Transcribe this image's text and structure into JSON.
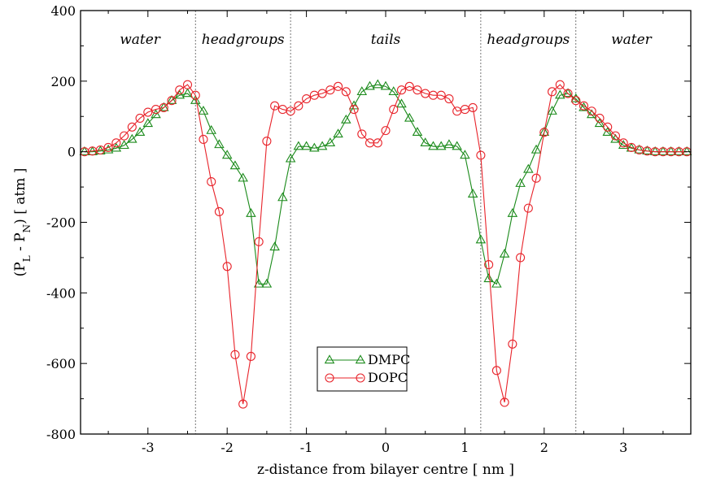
{
  "chart_data": {
    "type": "line",
    "xlabel": "z-distance from bilayer centre [ nm ]",
    "ylabel": "(P_L - P_N) [ atm ]",
    "ylabel_parts": {
      "open": "(P",
      "sub1": "L",
      "mid": " - P",
      "sub2": "N",
      "close": ") [ atm ]"
    },
    "xlim": [
      -3.85,
      3.85
    ],
    "ylim": [
      -800,
      400
    ],
    "x_ticks": [
      -3,
      -2,
      -1,
      0,
      1,
      2,
      3
    ],
    "x_tick_labels": [
      "-3",
      "-2",
      "-1",
      "0",
      "1",
      "2",
      "3"
    ],
    "y_ticks": [
      -800,
      -600,
      -400,
      -200,
      0,
      200,
      400
    ],
    "y_tick_labels": [
      "-800",
      "-600",
      "-400",
      "-200",
      "0",
      "200",
      "400"
    ],
    "grid": false,
    "legend_position": "bottom-center",
    "region_boundaries": [
      -2.4,
      -1.2,
      1.2,
      2.4
    ],
    "region_labels": [
      {
        "text": "water",
        "x": -3.1
      },
      {
        "text": "headgroups",
        "x": -1.8
      },
      {
        "text": "tails",
        "x": 0.0
      },
      {
        "text": "headgroups",
        "x": 1.8
      },
      {
        "text": "water",
        "x": 3.1
      }
    ],
    "series": [
      {
        "name": "DMPC",
        "color": "#1a8a1a",
        "marker": "triangle",
        "x": [
          -3.8,
          -3.7,
          -3.6,
          -3.5,
          -3.4,
          -3.3,
          -3.2,
          -3.1,
          -3.0,
          -2.9,
          -2.8,
          -2.7,
          -2.6,
          -2.5,
          -2.4,
          -2.3,
          -2.2,
          -2.1,
          -2.0,
          -1.9,
          -1.8,
          -1.7,
          -1.6,
          -1.5,
          -1.4,
          -1.3,
          -1.2,
          -1.1,
          -1.0,
          -0.9,
          -0.8,
          -0.7,
          -0.6,
          -0.5,
          -0.4,
          -0.3,
          -0.2,
          -0.1,
          0.0,
          0.1,
          0.2,
          0.3,
          0.4,
          0.5,
          0.6,
          0.7,
          0.8,
          0.9,
          1.0,
          1.1,
          1.2,
          1.3,
          1.4,
          1.5,
          1.6,
          1.7,
          1.8,
          1.9,
          2.0,
          2.1,
          2.2,
          2.3,
          2.4,
          2.5,
          2.6,
          2.7,
          2.8,
          2.9,
          3.0,
          3.1,
          3.2,
          3.3,
          3.4,
          3.5,
          3.6,
          3.7,
          3.8
        ],
        "y": [
          0,
          0,
          2,
          5,
          10,
          18,
          35,
          55,
          80,
          105,
          125,
          145,
          160,
          165,
          145,
          115,
          60,
          20,
          -10,
          -40,
          -75,
          -175,
          -375,
          -375,
          -270,
          -130,
          -20,
          15,
          15,
          10,
          15,
          25,
          50,
          90,
          130,
          170,
          185,
          190,
          185,
          170,
          135,
          95,
          55,
          25,
          15,
          15,
          20,
          15,
          -10,
          -120,
          -250,
          -360,
          -375,
          -290,
          -175,
          -90,
          -50,
          5,
          55,
          115,
          160,
          165,
          150,
          125,
          105,
          80,
          55,
          35,
          18,
          10,
          5,
          2,
          0,
          0,
          0,
          0,
          0
        ]
      },
      {
        "name": "DOPC",
        "color": "#e8232a",
        "marker": "circle",
        "x": [
          -3.8,
          -3.7,
          -3.6,
          -3.5,
          -3.4,
          -3.3,
          -3.2,
          -3.1,
          -3.0,
          -2.9,
          -2.8,
          -2.7,
          -2.6,
          -2.5,
          -2.4,
          -2.3,
          -2.2,
          -2.1,
          -2.0,
          -1.9,
          -1.8,
          -1.7,
          -1.6,
          -1.5,
          -1.4,
          -1.3,
          -1.2,
          -1.1,
          -1.0,
          -0.9,
          -0.8,
          -0.7,
          -0.6,
          -0.5,
          -0.4,
          -0.3,
          -0.2,
          -0.1,
          0.0,
          0.1,
          0.2,
          0.3,
          0.4,
          0.5,
          0.6,
          0.7,
          0.8,
          0.9,
          1.0,
          1.1,
          1.2,
          1.3,
          1.4,
          1.5,
          1.6,
          1.7,
          1.8,
          1.9,
          2.0,
          2.1,
          2.2,
          2.3,
          2.4,
          2.5,
          2.6,
          2.7,
          2.8,
          2.9,
          3.0,
          3.1,
          3.2,
          3.3,
          3.4,
          3.5,
          3.6,
          3.7,
          3.8
        ],
        "y": [
          0,
          2,
          5,
          12,
          25,
          45,
          70,
          95,
          112,
          120,
          125,
          145,
          175,
          190,
          160,
          35,
          -85,
          -170,
          -325,
          -575,
          -715,
          -580,
          -255,
          30,
          130,
          120,
          115,
          130,
          150,
          160,
          165,
          175,
          185,
          170,
          120,
          50,
          25,
          25,
          60,
          120,
          175,
          185,
          175,
          165,
          160,
          160,
          150,
          115,
          120,
          125,
          -10,
          -320,
          -620,
          -710,
          -545,
          -300,
          -160,
          -75,
          55,
          170,
          190,
          165,
          145,
          130,
          115,
          95,
          70,
          45,
          25,
          12,
          5,
          2,
          0,
          0,
          0,
          0,
          0
        ]
      }
    ]
  }
}
